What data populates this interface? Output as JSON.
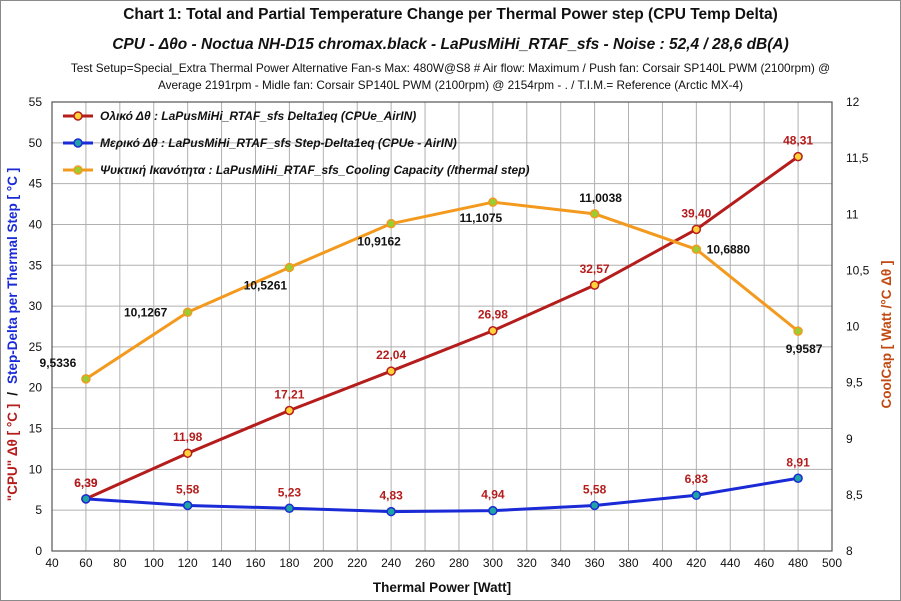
{
  "header": {
    "title": "Chart 1: Total and Partial Temperature Change per Thermal Power step   (CPU Temp Delta)",
    "subtitle": "CPU -  Δθο   -  Noctua NH-D15 chromax.black  -   LaPusMiHi_RTAF_sfs  -  Noise : 52,4 / 28,6  dB(A)",
    "setup_line1": "Test Setup=Special_Extra Thermal Power Alternative Fan-s Max: 480W@S8 # Air flow: Maximum / Push fan: Corsair SP140L PWM  (2100rpm)  @",
    "setup_line2": "Average 2191rpm - Midle fan: Corsair SP140L PWM  (2100rpm)  @ 2154rpm - . / T.I.M.= Reference (Arctic MX-4)"
  },
  "colors": {
    "total": "#b51c1c",
    "step": "#1a2ad6",
    "capacity": "#f39a1e",
    "marker_fill_total": "#ffd23a",
    "marker_fill_step": "#1fa3a3",
    "marker_fill_capacity": "#9acd32",
    "grid": "#b0b0b0",
    "left_axis_title_primary": "#b51c1c",
    "left_axis_title_secondary": "#1a2ad6",
    "right_axis_title": "#c24a12"
  },
  "chart_data": {
    "type": "line",
    "xlabel": "Thermal Power [Watt]",
    "ylabel_primary": "\"CPU\" Δθ  [ °C ]",
    "ylabel_separator": "/",
    "ylabel_secondary": "Step-Delta per Thermal Step  [ °C ]",
    "y2label": "CoolCap  [ Watt  /°C  Δθ ]",
    "xlim": [
      40,
      500
    ],
    "xticks": [
      "40",
      "60",
      "80",
      "100",
      "120",
      "140",
      "160",
      "180",
      "200",
      "220",
      "240",
      "260",
      "280",
      "300",
      "320",
      "340",
      "360",
      "380",
      "400",
      "420",
      "440",
      "460",
      "480",
      "500"
    ],
    "ylim": [
      0,
      55
    ],
    "yticks": [
      "0",
      "5",
      "10",
      "15",
      "20",
      "25",
      "30",
      "35",
      "40",
      "45",
      "50",
      "55"
    ],
    "y2lim": [
      8,
      12
    ],
    "y2ticks": [
      "8",
      "8,5",
      "9",
      "9,5",
      "10",
      "10,5",
      "11",
      "11,5",
      "12"
    ],
    "grid": true,
    "legend_position": "top-left",
    "series": [
      {
        "name": "Ολικό Δθ :  LaPusMiHi_RTAF_sfs   Delta1eq (CPUe_AirIN)",
        "axis": "left",
        "x": [
          60,
          120,
          180,
          240,
          300,
          360,
          420,
          480
        ],
        "values": [
          6.39,
          11.98,
          17.21,
          22.04,
          26.98,
          32.57,
          39.4,
          48.31
        ],
        "labels": [
          "6,39",
          "11,98",
          "17,21",
          "22,04",
          "26,98",
          "32,57",
          "39,40",
          "48,31"
        ]
      },
      {
        "name": "Μερικό Δθ :  LaPusMiHi_RTAF_sfs   Step-Delta1eq (CPUe - AirIN)",
        "axis": "left",
        "x": [
          60,
          120,
          180,
          240,
          300,
          360,
          420,
          480
        ],
        "values": [
          6.39,
          5.58,
          5.23,
          4.83,
          4.94,
          5.58,
          6.83,
          8.91
        ],
        "labels": [
          "6,39",
          "5,58",
          "5,23",
          "4,83",
          "4,94",
          "5,58",
          "6,83",
          "8,91"
        ]
      },
      {
        "name": "Ψυκτική Ικανότητα :  LaPusMiHi_RTAF_sfs_Cooling  Capacity (/thermal step)",
        "axis": "right",
        "x": [
          60,
          120,
          180,
          240,
          300,
          360,
          420,
          480
        ],
        "values": [
          9.5336,
          10.1267,
          10.5261,
          10.9162,
          11.1075,
          11.0038,
          10.688,
          9.9587
        ],
        "labels": [
          "9,5336",
          "10,1267",
          "10,5261",
          "10,9162",
          "11,1075",
          "11,0038",
          "10,6880",
          "9,9587"
        ]
      }
    ]
  }
}
